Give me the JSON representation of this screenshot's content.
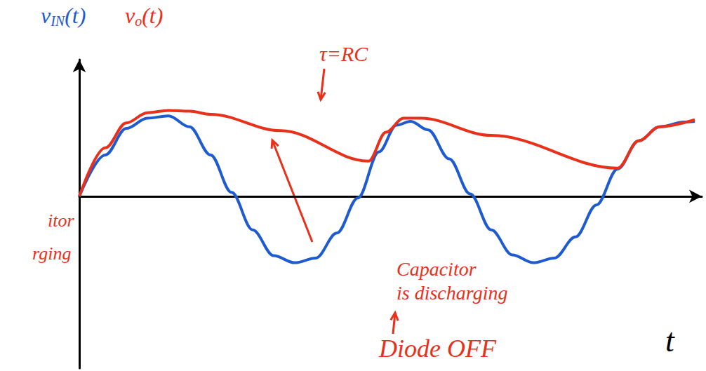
{
  "chart_data": {
    "type": "line",
    "series": [
      {
        "name": "vIN(t)",
        "color": "#1f5bd0",
        "x": [
          0,
          37,
          67,
          97,
          127,
          157,
          187,
          217,
          247,
          277,
          307,
          337,
          367,
          397,
          427,
          452,
          472,
          497,
          527,
          557,
          587,
          617,
          647,
          677,
          707,
          737,
          767,
          797,
          827,
          862,
          877
        ],
        "values": [
          0,
          0.53,
          0.87,
          1.0,
          1.03,
          0.89,
          0.53,
          0.05,
          -0.43,
          -0.76,
          -0.85,
          -0.79,
          -0.47,
          -0.02,
          0.57,
          0.91,
          0.96,
          0.85,
          0.48,
          0.03,
          -0.43,
          -0.75,
          -0.85,
          -0.79,
          -0.52,
          -0.11,
          0.35,
          0.71,
          0.89,
          0.95,
          0.96
        ]
      },
      {
        "name": "vo(t)",
        "color": "#e8301a",
        "x": [
          0,
          37,
          67,
          97,
          127,
          157,
          187,
          287,
          412,
          437,
          462,
          487,
          587,
          767,
          797,
          827,
          877
        ],
        "values": [
          0,
          0.62,
          0.94,
          1.07,
          1.1,
          1.09,
          1.05,
          0.84,
          0.45,
          0.82,
          1.0,
          1.0,
          0.78,
          0.36,
          0.71,
          0.89,
          0.98
        ]
      }
    ],
    "xlabel": "t",
    "xlim": [
      0,
      887
    ],
    "ylim": [
      -2.2,
      1.75
    ],
    "tick_labels": false,
    "grid": false,
    "annotations": [
      {
        "text": "τ=RC",
        "color": "#e8301a"
      },
      {
        "text": [
          "Capacitor",
          "is discharging"
        ],
        "color": "#e8301a"
      },
      {
        "text": "Diode OFF",
        "color": "#e8301a"
      },
      {
        "text": "itor",
        "color": "#e8301a"
      },
      {
        "text": "rging",
        "color": "#e8301a"
      }
    ]
  }
}
